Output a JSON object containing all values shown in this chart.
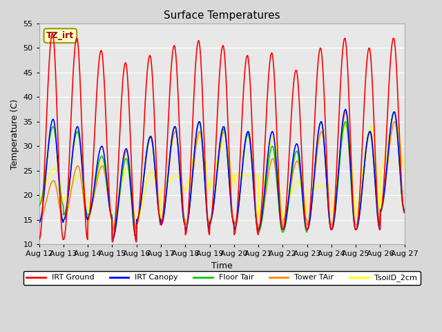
{
  "title": "Surface Temperatures",
  "xlabel": "Time",
  "ylabel": "Temperature (C)",
  "ylim": [
    10,
    55
  ],
  "n_days": 15,
  "pts_per_day": 96,
  "xtick_labels": [
    "Aug 12",
    "Aug 13",
    "Aug 14",
    "Aug 15",
    "Aug 16",
    "Aug 17",
    "Aug 18",
    "Aug 19",
    "Aug 20",
    "Aug 21",
    "Aug 22",
    "Aug 23",
    "Aug 24",
    "Aug 25",
    "Aug 26",
    "Aug 27"
  ],
  "annotation_text": "TZ_irt",
  "annotation_color": "#990000",
  "annotation_bg": "#ffffcc",
  "annotation_border": "#999900",
  "colors": {
    "IRT Ground": "#ff0000",
    "IRT Canopy": "#0000ff",
    "Floor Tair": "#00cc00",
    "Tower TAir": "#ff8800",
    "TsoilD_2cm": "#ffff00"
  },
  "fig_bg": "#d8d8d8",
  "plot_bg": "#e8e8e8",
  "grid_color": "#ffffff",
  "irt_ground_peaks": [
    53,
    52,
    49.5,
    47,
    48.5,
    50.5,
    51.5,
    50.5,
    48.5,
    49,
    45.5,
    50,
    52,
    50,
    52
  ],
  "irt_ground_mins": [
    11,
    11,
    15,
    10.5,
    14,
    14,
    12,
    14,
    12,
    13,
    13,
    13,
    13,
    13,
    16.5
  ],
  "canopy_peaks": [
    35.5,
    34,
    30,
    29.5,
    32,
    34,
    35,
    34,
    33,
    33,
    30.5,
    35,
    37.5,
    33,
    37
  ],
  "canopy_mins": [
    14.5,
    15,
    15.5,
    11,
    15,
    14,
    13,
    14.5,
    13,
    13,
    13,
    13,
    13,
    13,
    17
  ],
  "floor_peaks": [
    34,
    33,
    28,
    27.5,
    32,
    34,
    35,
    33.5,
    32.5,
    30,
    29,
    35,
    35,
    33,
    37
  ],
  "floor_mins": [
    18,
    16,
    16,
    11,
    15,
    14,
    13,
    14.5,
    13,
    12.5,
    12.5,
    13,
    13,
    13,
    16.5
  ],
  "tower_peaks": [
    23,
    26,
    26,
    29,
    32,
    33,
    33,
    33,
    33,
    27.5,
    27,
    33,
    37,
    33,
    35
  ],
  "tower_mins": [
    15,
    15,
    16,
    13,
    15,
    15,
    14,
    15,
    14,
    13,
    15,
    14,
    14,
    14,
    17
  ],
  "soil_peaks": [
    25.5,
    24,
    27,
    26,
    25,
    24,
    32,
    31,
    24,
    32,
    23,
    22,
    35,
    34,
    35
  ],
  "soil_mins": [
    19,
    19,
    14.5,
    13,
    14,
    21,
    21,
    22,
    24,
    15.5,
    16,
    21,
    16,
    16,
    25
  ]
}
